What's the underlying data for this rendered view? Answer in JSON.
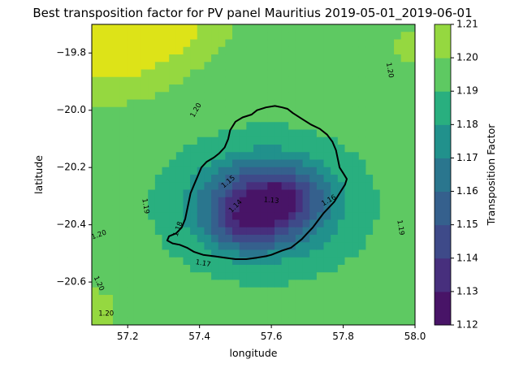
{
  "chart_data": {
    "type": "heatmap",
    "title": "Best transposition factor for PV panel Mauritius 2019-05-01_2019-06-01",
    "xlabel": "longitude",
    "ylabel": "latitude",
    "xlim": [
      57.1,
      58.0
    ],
    "ylim": [
      -20.75,
      -19.7
    ],
    "x_ticks": [
      "57.2",
      "57.4",
      "57.6",
      "57.8",
      "58.0"
    ],
    "x_tick_values": [
      57.2,
      57.4,
      57.6,
      57.8,
      58.0
    ],
    "y_ticks": [
      "−19.8",
      "−20.0",
      "−20.2",
      "−20.4",
      "−20.6"
    ],
    "y_tick_values": [
      -19.8,
      -20.0,
      -20.2,
      -20.4,
      -20.6
    ],
    "colorbar": {
      "label": "Transposition Factor",
      "levels": [
        1.12,
        1.13,
        1.14,
        1.15,
        1.16,
        1.17,
        1.18,
        1.19,
        1.2,
        1.21
      ],
      "tick_labels": [
        "1.12",
        "1.13",
        "1.14",
        "1.15",
        "1.16",
        "1.17",
        "1.18",
        "1.19",
        "1.20",
        "1.21"
      ],
      "colors": [
        "#481467",
        "#472f7d",
        "#3e4a89",
        "#35608d",
        "#2a768e",
        "#21918c",
        "#29af7f",
        "#5ec962",
        "#95d840",
        "#dde318"
      ]
    },
    "contour_labels": [
      {
        "text": "1.20",
        "lon": 57.93,
        "lat": -19.86,
        "rotate": 80
      },
      {
        "text": "1.20",
        "lon": 57.39,
        "lat": -20.0,
        "rotate": -60
      },
      {
        "text": "1.15",
        "lon": 57.48,
        "lat": -20.25,
        "rotate": -40
      },
      {
        "text": "1.14",
        "lon": 57.5,
        "lat": -20.335,
        "rotate": -45
      },
      {
        "text": "1.13",
        "lon": 57.6,
        "lat": -20.315,
        "rotate": 5
      },
      {
        "text": "1.16",
        "lon": 57.76,
        "lat": -20.315,
        "rotate": -30
      },
      {
        "text": "1.19",
        "lon": 57.25,
        "lat": -20.335,
        "rotate": 80
      },
      {
        "text": "1.19",
        "lon": 57.96,
        "lat": -20.41,
        "rotate": 80
      },
      {
        "text": "1.18",
        "lon": 57.34,
        "lat": -20.415,
        "rotate": -70
      },
      {
        "text": "1.20",
        "lon": 57.12,
        "lat": -20.435,
        "rotate": -20
      },
      {
        "text": "1.17",
        "lon": 57.41,
        "lat": -20.535,
        "rotate": 10
      },
      {
        "text": "1.20",
        "lon": 57.12,
        "lat": -20.605,
        "rotate": 65
      },
      {
        "text": "1.20",
        "lon": 57.14,
        "lat": -20.71,
        "rotate": 0
      }
    ],
    "field": {
      "background": 1.192,
      "features": [
        {
          "lon": 57.58,
          "lat": -20.33,
          "amp": -0.07,
          "slon": 0.17,
          "slat": 0.15
        },
        {
          "lon": 57.52,
          "lat": -20.42,
          "amp": -0.015,
          "slon": 0.1,
          "slat": 0.08
        },
        {
          "lon": 57.66,
          "lat": -20.28,
          "amp": -0.01,
          "slon": 0.08,
          "slat": 0.08
        },
        {
          "lon": 57.15,
          "lat": -19.8,
          "amp": 0.022,
          "slon": 0.22,
          "slat": 0.18
        },
        {
          "lon": 57.3,
          "lat": -19.72,
          "amp": 0.016,
          "slon": 0.2,
          "slat": 0.1
        },
        {
          "lon": 57.98,
          "lat": -19.78,
          "amp": 0.01,
          "slon": 0.08,
          "slat": 0.12
        },
        {
          "lon": 57.1,
          "lat": -20.7,
          "amp": 0.012,
          "slon": 0.1,
          "slat": 0.12
        }
      ]
    },
    "coastline": [
      [
        57.63,
        -19.99
      ],
      [
        57.61,
        -19.985
      ],
      [
        57.585,
        -19.99
      ],
      [
        57.56,
        -20.0
      ],
      [
        57.545,
        -20.015
      ],
      [
        57.52,
        -20.025
      ],
      [
        57.5,
        -20.04
      ],
      [
        57.485,
        -20.07
      ],
      [
        57.48,
        -20.1
      ],
      [
        57.47,
        -20.13
      ],
      [
        57.455,
        -20.15
      ],
      [
        57.44,
        -20.165
      ],
      [
        57.42,
        -20.18
      ],
      [
        57.405,
        -20.2
      ],
      [
        57.395,
        -20.23
      ],
      [
        57.385,
        -20.26
      ],
      [
        57.375,
        -20.29
      ],
      [
        57.37,
        -20.32
      ],
      [
        57.365,
        -20.35
      ],
      [
        57.36,
        -20.38
      ],
      [
        57.35,
        -20.41
      ],
      [
        57.335,
        -20.43
      ],
      [
        57.315,
        -20.44
      ],
      [
        57.31,
        -20.455
      ],
      [
        57.325,
        -20.465
      ],
      [
        57.345,
        -20.47
      ],
      [
        57.365,
        -20.48
      ],
      [
        57.385,
        -20.495
      ],
      [
        57.41,
        -20.505
      ],
      [
        57.44,
        -20.51
      ],
      [
        57.47,
        -20.515
      ],
      [
        57.5,
        -20.52
      ],
      [
        57.53,
        -20.52
      ],
      [
        57.56,
        -20.515
      ],
      [
        57.585,
        -20.51
      ],
      [
        57.6,
        -20.505
      ],
      [
        57.63,
        -20.49
      ],
      [
        57.655,
        -20.48
      ],
      [
        57.67,
        -20.465
      ],
      [
        57.685,
        -20.45
      ],
      [
        57.7,
        -20.43
      ],
      [
        57.715,
        -20.41
      ],
      [
        57.73,
        -20.385
      ],
      [
        57.745,
        -20.36
      ],
      [
        57.76,
        -20.34
      ],
      [
        57.775,
        -20.32
      ],
      [
        57.785,
        -20.3
      ],
      [
        57.795,
        -20.28
      ],
      [
        57.805,
        -20.26
      ],
      [
        57.81,
        -20.24
      ],
      [
        57.8,
        -20.22
      ],
      [
        57.79,
        -20.2
      ],
      [
        57.785,
        -20.17
      ],
      [
        57.78,
        -20.14
      ],
      [
        57.77,
        -20.11
      ],
      [
        57.755,
        -20.085
      ],
      [
        57.735,
        -20.065
      ],
      [
        57.71,
        -20.05
      ],
      [
        57.685,
        -20.03
      ],
      [
        57.66,
        -20.01
      ],
      [
        57.645,
        -19.995
      ]
    ]
  }
}
